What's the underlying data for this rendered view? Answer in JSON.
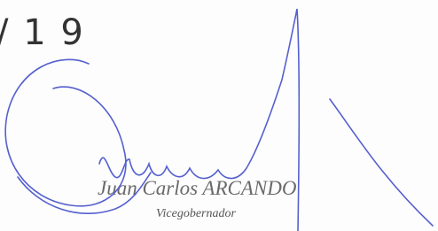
{
  "page_number": "/ 1 9",
  "signature": {
    "name": "Juan Carlos ARCANDO",
    "title": "Vicegobernador"
  }
}
